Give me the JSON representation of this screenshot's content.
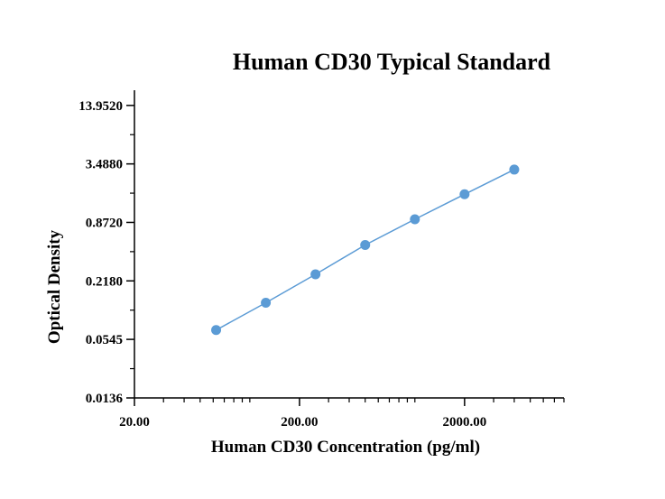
{
  "chart_data": {
    "type": "line",
    "title": "Human CD30 Typical Standard",
    "xlabel": "Human CD30 Concentration (pg/ml)",
    "ylabel": "Optical Density",
    "x_scale": "log",
    "y_scale": "log",
    "xlim": [
      20,
      8000
    ],
    "ylim": [
      0.0136,
      20
    ],
    "x_ticks": [
      {
        "value": 20,
        "label": "20.00"
      },
      {
        "value": 200,
        "label": "200.00"
      },
      {
        "value": 2000,
        "label": "2000.00"
      }
    ],
    "y_ticks": [
      {
        "value": 0.0136,
        "label": "0.0136"
      },
      {
        "value": 0.0545,
        "label": "0.0545"
      },
      {
        "value": 0.218,
        "label": "0.2180"
      },
      {
        "value": 0.872,
        "label": "0.8720"
      },
      {
        "value": 3.488,
        "label": "3.4880"
      },
      {
        "value": 13.952,
        "label": "13.9520"
      }
    ],
    "grid": false,
    "legend": "none",
    "series": [
      {
        "color": "#5b9bd5",
        "points": [
          {
            "x": 62.5,
            "y": 0.068
          },
          {
            "x": 125,
            "y": 0.13
          },
          {
            "x": 250,
            "y": 0.255
          },
          {
            "x": 500,
            "y": 0.51
          },
          {
            "x": 1000,
            "y": 0.94
          },
          {
            "x": 2000,
            "y": 1.7
          },
          {
            "x": 4000,
            "y": 3.05
          }
        ]
      }
    ],
    "axis_color": "#000000"
  }
}
